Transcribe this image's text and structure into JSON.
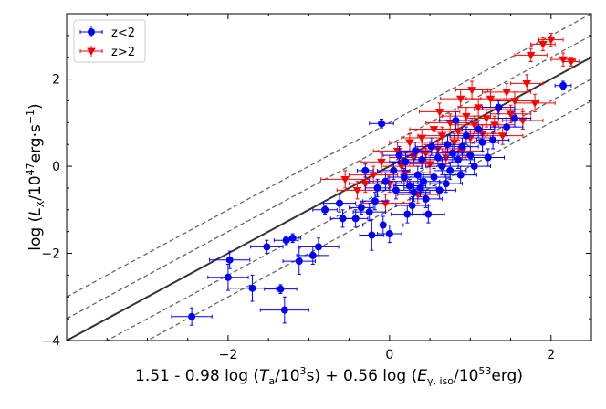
{
  "chart_data": {
    "type": "scatter",
    "xlabel": "1.51 - 0.98 log (T_a/10^3s) + 0.56 log (E_γ,iso/10^53erg)",
    "ylabel": "log (L_X/10^47erg·s^-1)",
    "xlim": [
      -4.0,
      2.5
    ],
    "ylim": [
      -4.0,
      3.5
    ],
    "x_ticks": [
      -2,
      0,
      2
    ],
    "y_ticks": [
      -4,
      -2,
      0,
      2
    ],
    "x_tick_labels": [
      "−2",
      "0",
      "2"
    ],
    "y_tick_labels": [
      "−4",
      "−2",
      "0",
      "2"
    ],
    "grid": false,
    "legend_position": "top-left",
    "legend": [
      "z<2",
      "z>2"
    ],
    "fit_line": {
      "slope": 1.0,
      "intercept": 0.0,
      "color": "#333333",
      "style": "solid"
    },
    "sigma_lines": {
      "slope": 1.0,
      "intercepts": [
        1.0,
        0.5,
        -0.5,
        -1.0
      ],
      "color": "#666666",
      "style": "dashed"
    },
    "series": [
      {
        "name": "z<2",
        "color": "#0000ff",
        "marker": "circle",
        "points": [
          {
            "x": -2.45,
            "y": -3.45,
            "xerr": 0.25,
            "yerr": 0.2
          },
          {
            "x": -2.0,
            "y": -2.55,
            "xerr": 0.25,
            "yerr": 0.3
          },
          {
            "x": -1.98,
            "y": -2.15,
            "xerr": 0.25,
            "yerr": 0.2
          },
          {
            "x": -1.7,
            "y": -2.8,
            "xerr": 0.3,
            "yerr": 0.3
          },
          {
            "x": -1.52,
            "y": -1.85,
            "xerr": 0.2,
            "yerr": 0.15
          },
          {
            "x": -1.35,
            "y": -2.82,
            "xerr": 0.2,
            "yerr": 0.1
          },
          {
            "x": -1.3,
            "y": -3.3,
            "xerr": 0.3,
            "yerr": 0.3
          },
          {
            "x": -1.28,
            "y": -1.7,
            "xerr": 0.15,
            "yerr": 0.1
          },
          {
            "x": -1.2,
            "y": -1.65,
            "xerr": 0.1,
            "yerr": 0.1
          },
          {
            "x": -1.12,
            "y": -2.18,
            "xerr": 0.2,
            "yerr": 0.3
          },
          {
            "x": -0.95,
            "y": -2.05,
            "xerr": 0.2,
            "yerr": 0.2
          },
          {
            "x": -0.88,
            "y": -1.85,
            "xerr": 0.25,
            "yerr": 0.2
          },
          {
            "x": -0.8,
            "y": -1.0,
            "xerr": 0.15,
            "yerr": 0.1
          },
          {
            "x": -0.62,
            "y": -0.85,
            "xerr": 0.2,
            "yerr": 0.2
          },
          {
            "x": -0.58,
            "y": -1.2,
            "xerr": 0.15,
            "yerr": 0.2
          },
          {
            "x": -0.42,
            "y": -1.2,
            "xerr": 0.15,
            "yerr": 0.2
          },
          {
            "x": -0.35,
            "y": -0.95,
            "xerr": 0.15,
            "yerr": 0.15
          },
          {
            "x": -0.3,
            "y": -0.1,
            "xerr": 0.1,
            "yerr": 0.15
          },
          {
            "x": -0.25,
            "y": -1.05,
            "xerr": 0.2,
            "yerr": 0.2
          },
          {
            "x": -0.22,
            "y": -1.58,
            "xerr": 0.15,
            "yerr": 0.35
          },
          {
            "x": -0.18,
            "y": -0.8,
            "xerr": 0.15,
            "yerr": 0.2
          },
          {
            "x": -0.15,
            "y": -0.5,
            "xerr": 0.15,
            "yerr": 0.2
          },
          {
            "x": -0.1,
            "y": 0.98,
            "xerr": 0.15,
            "yerr": 0.1
          },
          {
            "x": -0.08,
            "y": -1.35,
            "xerr": 0.25,
            "yerr": 0.2
          },
          {
            "x": -0.05,
            "y": -0.35,
            "xerr": 0.2,
            "yerr": 0.2
          },
          {
            "x": 0.0,
            "y": -1.55,
            "xerr": 0.15,
            "yerr": 0.2
          },
          {
            "x": 0.05,
            "y": -0.1,
            "xerr": 0.2,
            "yerr": 0.2
          },
          {
            "x": 0.08,
            "y": -0.55,
            "xerr": 0.25,
            "yerr": 0.2
          },
          {
            "x": 0.12,
            "y": 0.25,
            "xerr": 0.2,
            "yerr": 0.2
          },
          {
            "x": 0.18,
            "y": -0.25,
            "xerr": 0.2,
            "yerr": 0.2
          },
          {
            "x": 0.2,
            "y": 0.1,
            "xerr": 0.2,
            "yerr": 0.2
          },
          {
            "x": 0.22,
            "y": -1.1,
            "xerr": 0.2,
            "yerr": 0.2
          },
          {
            "x": 0.25,
            "y": -0.45,
            "xerr": 0.2,
            "yerr": 0.15
          },
          {
            "x": 0.28,
            "y": -0.9,
            "xerr": 0.2,
            "yerr": 0.2
          },
          {
            "x": 0.3,
            "y": -0.6,
            "xerr": 0.2,
            "yerr": 0.2
          },
          {
            "x": 0.32,
            "y": 0.35,
            "xerr": 0.2,
            "yerr": 0.2
          },
          {
            "x": 0.35,
            "y": -0.2,
            "xerr": 0.2,
            "yerr": 0.2
          },
          {
            "x": 0.38,
            "y": -0.5,
            "xerr": 0.2,
            "yerr": 0.2
          },
          {
            "x": 0.4,
            "y": 0.15,
            "xerr": 0.2,
            "yerr": 0.2
          },
          {
            "x": 0.42,
            "y": -0.35,
            "xerr": 0.2,
            "yerr": 0.2
          },
          {
            "x": 0.45,
            "y": -0.75,
            "xerr": 0.2,
            "yerr": 0.2
          },
          {
            "x": 0.48,
            "y": -1.1,
            "xerr": 0.2,
            "yerr": 0.2
          },
          {
            "x": 0.52,
            "y": 0.45,
            "xerr": 0.2,
            "yerr": 0.2
          },
          {
            "x": 0.55,
            "y": -0.25,
            "xerr": 0.2,
            "yerr": 0.2
          },
          {
            "x": 0.6,
            "y": 0.2,
            "xerr": 0.2,
            "yerr": 0.2
          },
          {
            "x": 0.62,
            "y": -0.55,
            "xerr": 0.2,
            "yerr": 0.2
          },
          {
            "x": 0.65,
            "y": 0.0,
            "xerr": 0.2,
            "yerr": 0.2
          },
          {
            "x": 0.7,
            "y": -0.4,
            "xerr": 0.2,
            "yerr": 0.2
          },
          {
            "x": 0.72,
            "y": 0.5,
            "xerr": 0.2,
            "yerr": 0.2
          },
          {
            "x": 0.75,
            "y": -0.1,
            "xerr": 0.2,
            "yerr": 0.2
          },
          {
            "x": 0.78,
            "y": 0.3,
            "xerr": 0.2,
            "yerr": 0.2
          },
          {
            "x": 0.82,
            "y": 1.05,
            "xerr": 0.2,
            "yerr": 0.2
          },
          {
            "x": 0.85,
            "y": 0.15,
            "xerr": 0.2,
            "yerr": 0.2
          },
          {
            "x": 0.88,
            "y": -0.2,
            "xerr": 0.2,
            "yerr": 0.2
          },
          {
            "x": 0.9,
            "y": 0.45,
            "xerr": 0.2,
            "yerr": 0.2
          },
          {
            "x": 0.95,
            "y": 0.7,
            "xerr": 0.2,
            "yerr": 0.2
          },
          {
            "x": 1.0,
            "y": 0.25,
            "xerr": 0.2,
            "yerr": 0.2
          },
          {
            "x": 1.05,
            "y": 0.0,
            "xerr": 0.2,
            "yerr": 0.2
          },
          {
            "x": 1.1,
            "y": 0.85,
            "xerr": 0.2,
            "yerr": 0.2
          },
          {
            "x": 1.15,
            "y": 0.55,
            "xerr": 0.2,
            "yerr": 0.2
          },
          {
            "x": 1.22,
            "y": 0.2,
            "xerr": 0.2,
            "yerr": 0.2
          },
          {
            "x": 1.28,
            "y": 0.6,
            "xerr": 0.2,
            "yerr": 0.2
          },
          {
            "x": 1.35,
            "y": 1.35,
            "xerr": 0.2,
            "yerr": 0.15
          },
          {
            "x": 1.45,
            "y": 0.9,
            "xerr": 0.2,
            "yerr": 0.2
          },
          {
            "x": 1.55,
            "y": 1.1,
            "xerr": 0.2,
            "yerr": 0.2
          },
          {
            "x": 2.15,
            "y": 1.85,
            "xerr": 0.1,
            "yerr": 0.1
          }
        ]
      },
      {
        "name": "z>2",
        "color": "#ff0000",
        "marker": "triangle-down",
        "points": [
          {
            "x": -0.55,
            "y": -0.3,
            "xerr": 0.3,
            "yerr": 0.2
          },
          {
            "x": -0.4,
            "y": -0.55,
            "xerr": 0.25,
            "yerr": 0.2
          },
          {
            "x": -0.3,
            "y": -0.4,
            "xerr": 0.2,
            "yerr": 0.2
          },
          {
            "x": -0.2,
            "y": -0.2,
            "xerr": 0.3,
            "yerr": 0.2
          },
          {
            "x": -0.1,
            "y": 0.1,
            "xerr": 0.25,
            "yerr": 0.2
          },
          {
            "x": 0.0,
            "y": -0.4,
            "xerr": 0.3,
            "yerr": 0.2
          },
          {
            "x": 0.1,
            "y": 0.35,
            "xerr": 0.3,
            "yerr": 0.2
          },
          {
            "x": 0.15,
            "y": 0.0,
            "xerr": 0.25,
            "yerr": 0.2
          },
          {
            "x": 0.2,
            "y": -0.15,
            "xerr": 0.3,
            "yerr": 0.2
          },
          {
            "x": 0.25,
            "y": 0.55,
            "xerr": 0.25,
            "yerr": 0.2
          },
          {
            "x": 0.3,
            "y": 0.2,
            "xerr": 0.3,
            "yerr": 0.2
          },
          {
            "x": 0.4,
            "y": 0.65,
            "xerr": 0.25,
            "yerr": 0.2
          },
          {
            "x": 0.45,
            "y": 0.3,
            "xerr": 0.3,
            "yerr": 0.2
          },
          {
            "x": 0.5,
            "y": 0.05,
            "xerr": 0.25,
            "yerr": 0.2
          },
          {
            "x": 0.55,
            "y": 0.85,
            "xerr": 0.3,
            "yerr": 0.2
          },
          {
            "x": 0.6,
            "y": 0.4,
            "xerr": 0.25,
            "yerr": 0.2
          },
          {
            "x": 0.65,
            "y": 0.7,
            "xerr": 0.3,
            "yerr": 0.2
          },
          {
            "x": 0.7,
            "y": 0.2,
            "xerr": 0.25,
            "yerr": 0.2
          },
          {
            "x": 0.75,
            "y": 1.0,
            "xerr": 0.3,
            "yerr": 0.2
          },
          {
            "x": 0.8,
            "y": 0.55,
            "xerr": 0.25,
            "yerr": 0.2
          },
          {
            "x": 0.85,
            "y": 0.8,
            "xerr": 0.3,
            "yerr": 0.2
          },
          {
            "x": 0.9,
            "y": 0.35,
            "xerr": 0.25,
            "yerr": 0.2
          },
          {
            "x": 0.95,
            "y": 1.15,
            "xerr": 0.3,
            "yerr": 0.2
          },
          {
            "x": 1.0,
            "y": 0.65,
            "xerr": 0.25,
            "yerr": 0.2
          },
          {
            "x": 1.05,
            "y": 0.95,
            "xerr": 0.3,
            "yerr": 0.2
          },
          {
            "x": 1.1,
            "y": 1.35,
            "xerr": 0.25,
            "yerr": 0.2
          },
          {
            "x": 1.15,
            "y": 0.75,
            "xerr": 0.3,
            "yerr": 0.2
          },
          {
            "x": 1.2,
            "y": 1.1,
            "xerr": 0.25,
            "yerr": 0.2
          },
          {
            "x": 1.25,
            "y": 1.55,
            "xerr": 0.3,
            "yerr": 0.2
          },
          {
            "x": 1.3,
            "y": 0.95,
            "xerr": 0.25,
            "yerr": 0.2
          },
          {
            "x": 1.35,
            "y": 1.3,
            "xerr": 0.3,
            "yerr": 0.2
          },
          {
            "x": 1.4,
            "y": 0.7,
            "xerr": 0.25,
            "yerr": 0.2
          },
          {
            "x": 1.45,
            "y": 1.7,
            "xerr": 0.3,
            "yerr": 0.2
          },
          {
            "x": 1.5,
            "y": 1.2,
            "xerr": 0.25,
            "yerr": 0.2
          },
          {
            "x": 1.55,
            "y": 1.5,
            "xerr": 0.3,
            "yerr": 0.2
          },
          {
            "x": 1.65,
            "y": 1.05,
            "xerr": 0.25,
            "yerr": 0.2
          },
          {
            "x": 1.7,
            "y": 1.9,
            "xerr": 0.2,
            "yerr": 0.2
          },
          {
            "x": 1.75,
            "y": 2.55,
            "xerr": 0.2,
            "yerr": 0.15
          },
          {
            "x": 1.8,
            "y": 1.45,
            "xerr": 0.25,
            "yerr": 0.2
          },
          {
            "x": 1.9,
            "y": 2.8,
            "xerr": 0.15,
            "yerr": 0.15
          },
          {
            "x": 2.0,
            "y": 2.9,
            "xerr": 0.15,
            "yerr": 0.15
          },
          {
            "x": 2.15,
            "y": 2.45,
            "xerr": 0.15,
            "yerr": 0.15
          },
          {
            "x": 2.25,
            "y": 2.4,
            "xerr": 0.1,
            "yerr": 0.1
          },
          {
            "x": 0.35,
            "y": -0.65,
            "xerr": 0.25,
            "yerr": 0.2
          },
          {
            "x": -0.05,
            "y": -0.85,
            "xerr": 0.3,
            "yerr": 0.2
          },
          {
            "x": 0.62,
            "y": 1.25,
            "xerr": 0.25,
            "yerr": 0.2
          },
          {
            "x": 1.02,
            "y": 1.75,
            "xerr": 0.2,
            "yerr": 0.2
          },
          {
            "x": 0.88,
            "y": 1.55,
            "xerr": 0.25,
            "yerr": 0.2
          }
        ]
      }
    ]
  }
}
